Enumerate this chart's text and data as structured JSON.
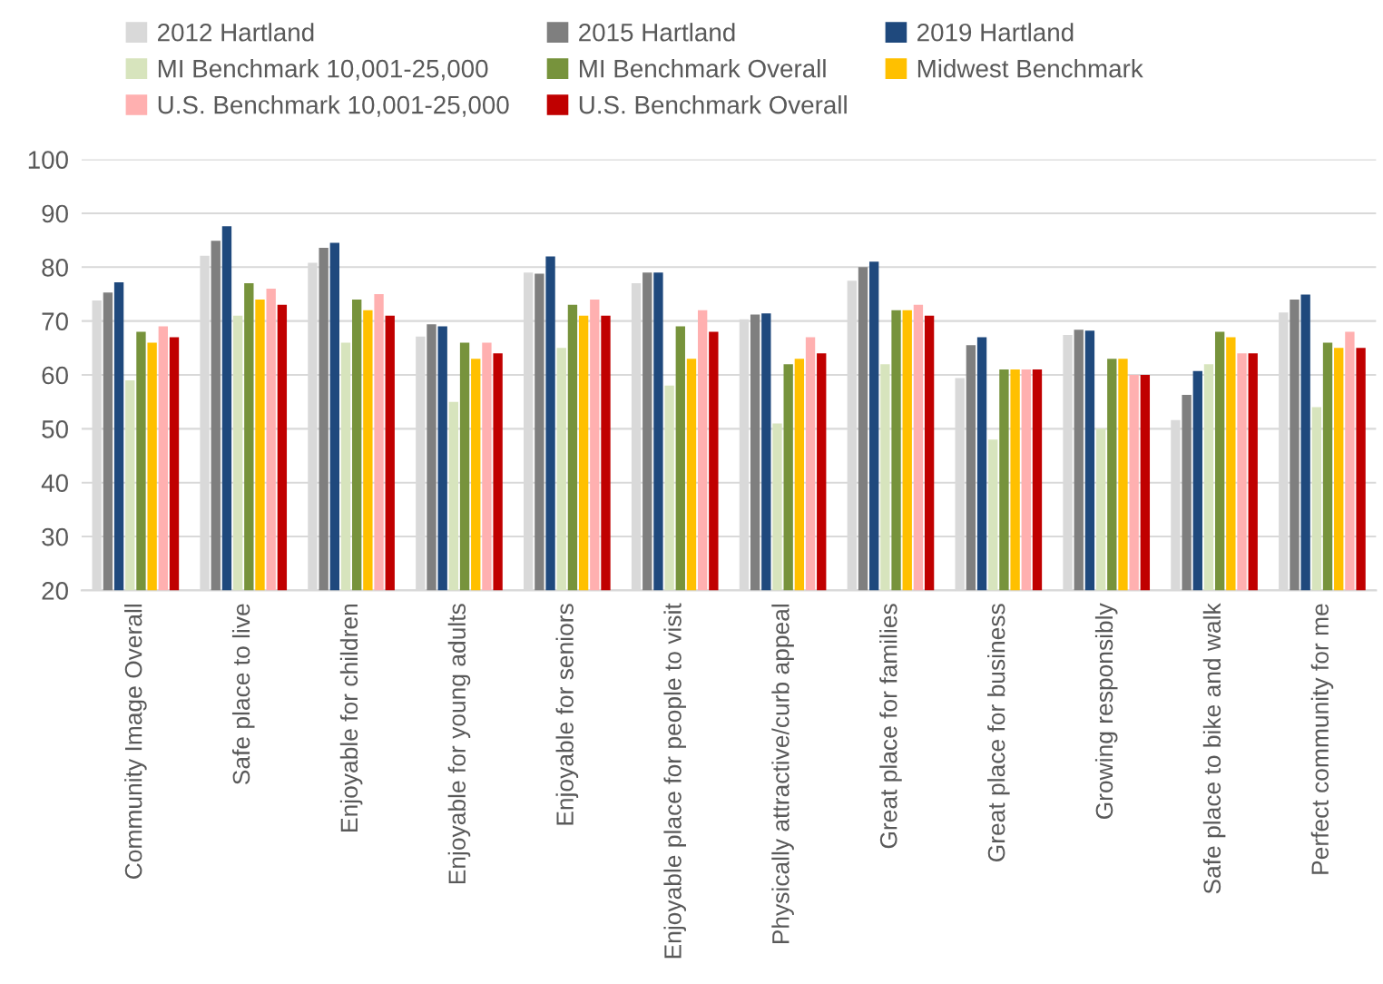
{
  "chart_data": {
    "type": "bar",
    "categories": [
      "Community Image Overall",
      "Safe place to live",
      "Enjoyable for children",
      "Enjoyable for young adults",
      "Enjoyable for seniors",
      "Enjoyable place for people to visit",
      "Physically attractive/curb appeal",
      "Great place for families",
      "Great place for business",
      "Growing responsibly",
      "Safe place to bike and walk",
      "Perfect community for me"
    ],
    "series": [
      {
        "name": "2012 Hartland",
        "color": "#d9d9d9",
        "values": [
          73.8,
          82.1,
          80.8,
          67.1,
          79.0,
          77.0,
          70.3,
          77.5,
          59.4,
          67.4,
          51.6,
          71.6
        ]
      },
      {
        "name": "2015 Hartland",
        "color": "#7f7f7f",
        "values": [
          75.3,
          84.9,
          83.6,
          69.4,
          78.8,
          79.0,
          71.2,
          80.0,
          65.5,
          68.4,
          56.3,
          74.0
        ]
      },
      {
        "name": "2019 Hartland",
        "color": "#1f497d",
        "values": [
          77.2,
          87.6,
          84.5,
          69.0,
          82.0,
          79.0,
          71.4,
          81.0,
          67.0,
          68.2,
          60.7,
          74.9
        ]
      },
      {
        "name": "MI Benchmark 10,001-25,000",
        "color": "#d7e4bd",
        "values": [
          59,
          71,
          66,
          55,
          65,
          58,
          51,
          62,
          48,
          50,
          62,
          54
        ]
      },
      {
        "name": "MI Benchmark Overall",
        "color": "#77933c",
        "values": [
          68,
          77,
          74,
          66,
          73,
          69,
          62,
          72,
          61,
          63,
          68,
          66
        ]
      },
      {
        "name": "Midwest Benchmark",
        "color": "#ffc000",
        "values": [
          66,
          74,
          72,
          63,
          71,
          63,
          63,
          72,
          61,
          63,
          67,
          65
        ]
      },
      {
        "name": "U.S. Benchmark 10,001-25,000",
        "color": "#ffb0b0",
        "values": [
          69,
          76,
          75,
          66,
          74,
          72,
          67,
          73,
          61,
          60,
          64,
          68
        ]
      },
      {
        "name": "U.S. Benchmark Overall",
        "color": "#c00000",
        "values": [
          67,
          73,
          71,
          64,
          71,
          68,
          64,
          71,
          61,
          60,
          64,
          65
        ]
      }
    ],
    "ylim": [
      20,
      100
    ],
    "yticks": [
      20,
      30,
      40,
      50,
      60,
      70,
      80,
      90,
      100
    ],
    "grid": "y",
    "legend": "top"
  }
}
